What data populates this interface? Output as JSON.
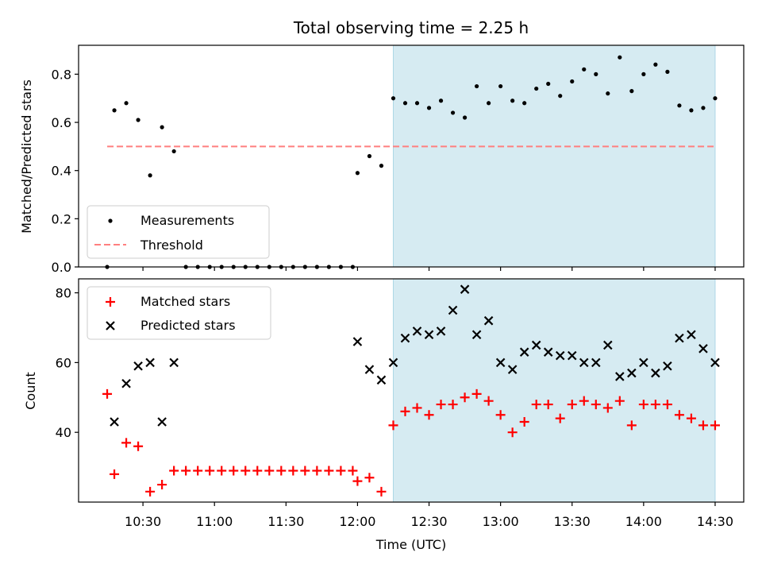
{
  "title": "Total observing time = 2.25 h",
  "xlabel": "Time (UTC)",
  "x_tick_labels": [
    "10:30",
    "11:00",
    "11:30",
    "12:00",
    "12:30",
    "13:00",
    "13:30",
    "14:00",
    "14:30"
  ],
  "colors": {
    "measurements": "#000000",
    "threshold": "#ff7f7f",
    "matched": "#ff0000",
    "predicted": "#000000",
    "shade": "#add8e6"
  },
  "chart_data": [
    {
      "type": "scatter",
      "panel": "top",
      "ylabel": "Matched/Predicted stars",
      "ylim": [
        0,
        0.92
      ],
      "yticks": [
        0.0,
        0.2,
        0.4,
        0.6,
        0.8
      ],
      "xlim": [
        "10:03",
        "14:42"
      ],
      "shaded_region": [
        "12:15",
        "14:30"
      ],
      "legend": [
        "Measurements",
        "Threshold"
      ],
      "legend_position": "lower-left",
      "threshold": {
        "name": "Threshold",
        "value": 0.5,
        "x_start": "10:15",
        "x_end": "14:30"
      },
      "series": [
        {
          "name": "Measurements",
          "x": [
            "10:15",
            "10:18",
            "10:23",
            "10:28",
            "10:33",
            "10:38",
            "10:43",
            "10:48",
            "10:53",
            "10:58",
            "11:03",
            "11:08",
            "11:13",
            "11:18",
            "11:23",
            "11:28",
            "11:33",
            "11:38",
            "11:43",
            "11:48",
            "11:53",
            "11:58",
            "12:00",
            "12:05",
            "12:10",
            "12:15",
            "12:20",
            "12:25",
            "12:30",
            "12:35",
            "12:40",
            "12:45",
            "12:50",
            "12:55",
            "13:00",
            "13:05",
            "13:10",
            "13:15",
            "13:20",
            "13:25",
            "13:30",
            "13:35",
            "13:40",
            "13:45",
            "13:50",
            "13:55",
            "14:00",
            "14:05",
            "14:10",
            "14:15",
            "14:20",
            "14:25",
            "14:30"
          ],
          "y": [
            0.0,
            0.65,
            0.68,
            0.61,
            0.38,
            0.58,
            0.48,
            0.0,
            0.0,
            0.0,
            0.0,
            0.0,
            0.0,
            0.0,
            0.0,
            0.0,
            0.0,
            0.0,
            0.0,
            0.0,
            0.0,
            0.0,
            0.39,
            0.46,
            0.42,
            0.7,
            0.68,
            0.68,
            0.66,
            0.69,
            0.64,
            0.62,
            0.75,
            0.68,
            0.75,
            0.69,
            0.68,
            0.74,
            0.76,
            0.71,
            0.77,
            0.82,
            0.8,
            0.72,
            0.87,
            0.73,
            0.8,
            0.84,
            0.81,
            0.67,
            0.65,
            0.66,
            0.7
          ]
        }
      ]
    },
    {
      "type": "scatter",
      "panel": "bottom",
      "ylabel": "Count",
      "ylim": [
        20,
        84
      ],
      "yticks": [
        40,
        60,
        80
      ],
      "xlim": [
        "10:03",
        "14:42"
      ],
      "shaded_region": [
        "12:15",
        "14:30"
      ],
      "legend": [
        "Matched stars",
        "Predicted stars"
      ],
      "legend_position": "upper-left",
      "series": [
        {
          "name": "Matched stars",
          "x": [
            "10:15",
            "10:18",
            "10:23",
            "10:28",
            "10:33",
            "10:38",
            "10:43",
            "10:48",
            "10:53",
            "10:58",
            "11:03",
            "11:08",
            "11:13",
            "11:18",
            "11:23",
            "11:28",
            "11:33",
            "11:38",
            "11:43",
            "11:48",
            "11:53",
            "11:58",
            "12:00",
            "12:05",
            "12:10",
            "12:15",
            "12:20",
            "12:25",
            "12:30",
            "12:35",
            "12:40",
            "12:45",
            "12:50",
            "12:55",
            "13:00",
            "13:05",
            "13:10",
            "13:15",
            "13:20",
            "13:25",
            "13:30",
            "13:35",
            "13:40",
            "13:45",
            "13:50",
            "13:55",
            "14:00",
            "14:05",
            "14:10",
            "14:15",
            "14:20",
            "14:25",
            "14:30"
          ],
          "y": [
            51,
            28,
            37,
            36,
            23,
            25,
            29,
            29,
            29,
            29,
            29,
            29,
            29,
            29,
            29,
            29,
            29,
            29,
            29,
            29,
            29,
            29,
            26,
            27,
            23,
            42,
            46,
            47,
            45,
            48,
            48,
            50,
            51,
            49,
            45,
            40,
            43,
            48,
            48,
            44,
            48,
            49,
            48,
            47,
            49,
            42,
            48,
            48,
            48,
            45,
            44,
            42,
            42
          ]
        },
        {
          "name": "Predicted stars",
          "x": [
            "10:18",
            "10:23",
            "10:28",
            "10:33",
            "10:38",
            "10:43",
            "12:00",
            "12:05",
            "12:10",
            "12:15",
            "12:20",
            "12:25",
            "12:30",
            "12:35",
            "12:40",
            "12:45",
            "12:50",
            "12:55",
            "13:00",
            "13:05",
            "13:10",
            "13:15",
            "13:20",
            "13:25",
            "13:30",
            "13:35",
            "13:40",
            "13:45",
            "13:50",
            "13:55",
            "14:00",
            "14:05",
            "14:10",
            "14:15",
            "14:20",
            "14:25",
            "14:30"
          ],
          "y": [
            43,
            54,
            59,
            60,
            43,
            60,
            66,
            58,
            55,
            60,
            67,
            69,
            68,
            69,
            75,
            81,
            68,
            72,
            60,
            58,
            63,
            65,
            63,
            62,
            62,
            60,
            60,
            65,
            56,
            57,
            60,
            57,
            59,
            67,
            68,
            64,
            60
          ]
        }
      ]
    }
  ]
}
